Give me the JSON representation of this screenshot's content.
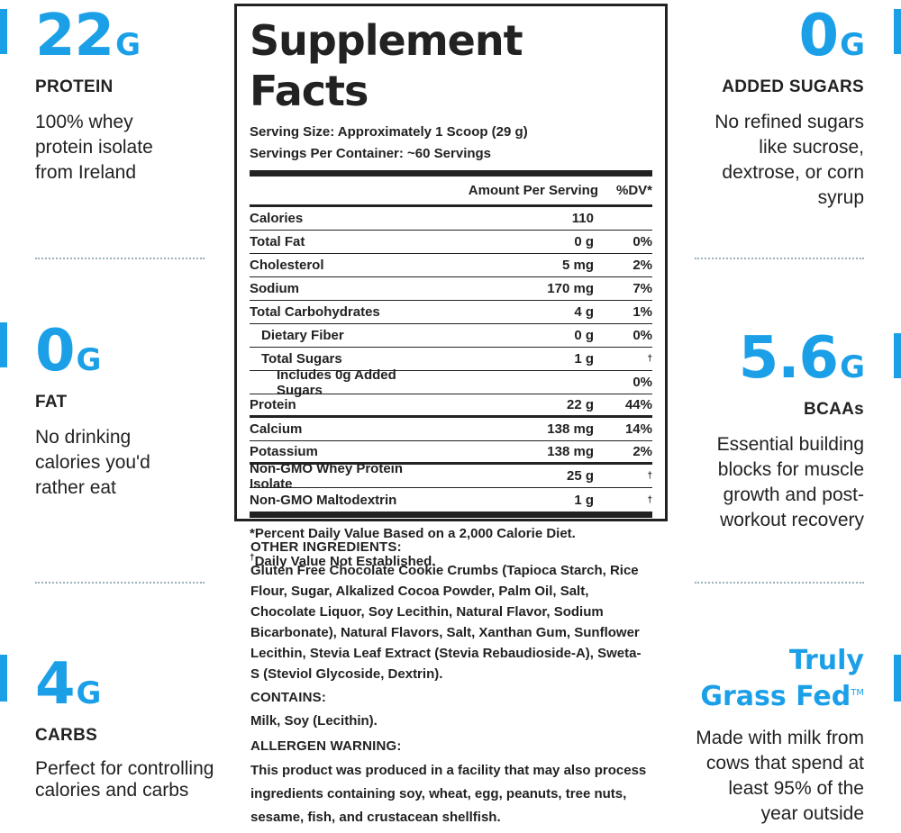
{
  "features_left": [
    {
      "number": "22",
      "unit": "G",
      "label": "PROTEIN",
      "description": "100% whey protein isolate from Ireland"
    },
    {
      "number": "0",
      "unit": "G",
      "label": "FAT",
      "description": "No drinking calories you'd rather eat"
    },
    {
      "number": "4",
      "unit": "G",
      "label": "CARBS",
      "description": "Perfect for controlling calories and carbs"
    }
  ],
  "features_right": [
    {
      "number": "0",
      "unit": "G",
      "label": "ADDED SUGARS",
      "description": "No refined sugars like sucrose, dextrose, or corn syrup"
    },
    {
      "number": "5.6",
      "unit": "G",
      "label": "BCAAs",
      "description": "Essential building blocks for muscle growth and post-workout recovery"
    },
    {
      "line1": "Truly",
      "line2": "Grass Fed",
      "trademark": "TM",
      "description": "Made with milk from cows that spend at least 95% of the year outside"
    }
  ],
  "facts": {
    "title": "Supplement Facts",
    "serving_size": "Serving Size: Approximately 1 Scoop (29 g)",
    "servings_per_container": "Servings Per Container: ~60 Servings",
    "header_amount": "Amount Per Serving",
    "header_dv": "%DV*",
    "rows": [
      {
        "name": "Calories",
        "amount": "110",
        "dv": ""
      },
      {
        "name": "Total Fat",
        "amount": "0 g",
        "dv": "0%"
      },
      {
        "name": "Cholesterol",
        "amount": "5 mg",
        "dv": "2%"
      },
      {
        "name": "Sodium",
        "amount": "170 mg",
        "dv": "7%"
      },
      {
        "name": "Total Carbohydrates",
        "amount": "4 g",
        "dv": "1%"
      },
      {
        "name": "Dietary Fiber",
        "amount": "0 g",
        "dv": "0%"
      },
      {
        "name": "Total Sugars",
        "amount": "1 g",
        "dv": "†"
      },
      {
        "name": "Includes 0g Added Sugars",
        "amount": "",
        "dv": "0%"
      },
      {
        "name": "Protein",
        "amount": "22 g",
        "dv": "44%"
      },
      {
        "name": "Calcium",
        "amount": "138 mg",
        "dv": "14%"
      },
      {
        "name": "Potassium",
        "amount": "138 mg",
        "dv": "2%"
      },
      {
        "name": "Non-GMO Whey Protein Isolate",
        "amount": "25 g",
        "dv": "†"
      },
      {
        "name": "Non-GMO Maltodextrin",
        "amount": "1 g",
        "dv": "†"
      }
    ],
    "footnote_1": "*Percent Daily Value Based on a 2,000 Calorie Diet.",
    "footnote_2_mark": "†",
    "footnote_2": "Daily Value Not Established."
  },
  "ingredients": {
    "other_heading": "OTHER INGREDIENTS:",
    "other_text": "Gluten Free Chocolate Cookie Crumbs (Tapioca Starch, Rice Flour, Sugar, Alkalized Cocoa Powder, Palm Oil, Salt, Chocolate Liquor, Soy Lecithin, Natural Flavor, Sodium Bicarbonate), Natural Flavors, Salt, Xanthan Gum, Sunflower Lecithin, Stevia Leaf Extract (Stevia Rebaudioside-A), Sweta-S (Steviol Glycoside, Dextrin).",
    "contains_heading": "CONTAINS:",
    "contains_text": "Milk, Soy (Lecithin).",
    "allergen_heading": "ALLERGEN WARNING:",
    "allergen_text": "This product was produced in a facility that may also process ingredients containing soy, wheat, egg, peanuts, tree nuts, sesame, fish, and crustacean shellfish."
  },
  "colors": {
    "accent": "#1ba0e8",
    "text": "#222222",
    "dots": "#9ab0bd"
  }
}
